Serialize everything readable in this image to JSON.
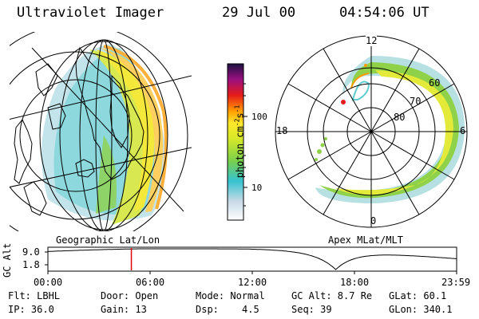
{
  "header": {
    "title": "Ultraviolet Imager",
    "date": "29 Jul 00",
    "time": "04:54:06 UT"
  },
  "left_panel": {
    "caption": "Geographic Lat/Lon"
  },
  "right_panel": {
    "caption": "Apex MLat/MLT",
    "mlt_labels": {
      "top": "12",
      "left": "18",
      "right": "6",
      "bottom": "0"
    },
    "lat_labels": [
      "60",
      "70",
      "80"
    ]
  },
  "colorbar": {
    "label": "photon cm",
    "exp1": "-2",
    "mid": "s",
    "exp2": "-1",
    "tick_high": "100",
    "tick_low": "10"
  },
  "altitude_plot": {
    "ylabel": "GC Alt",
    "y_high": "9.0",
    "y_low": "1.8",
    "x_ticks": [
      "00:00",
      "06:00",
      "12:00",
      "18:00",
      "23:59"
    ],
    "marker_time_h": 4.9
  },
  "info": {
    "flt": "Flt: LBHL",
    "door": "Door: Open",
    "mode": "Mode: Normal",
    "gc_alt": "GC Alt: 8.7 Re",
    "glat": "GLat:  60.1",
    "ip": "IP: 36.0",
    "gain": "Gain: 13",
    "dsp_label": "Dsp:",
    "dsp_value": "4.5",
    "seq": "Seq: 39",
    "glon": "GLon: 340.1"
  },
  "colors": {
    "marker": "#e00000",
    "grid": "#000000"
  }
}
